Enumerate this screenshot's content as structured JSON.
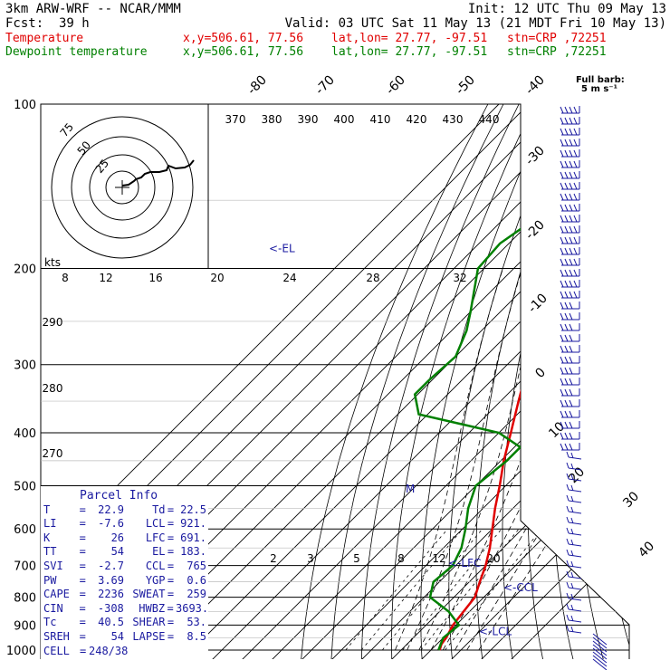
{
  "header": {
    "model": "3km ARW-WRF -- NCAR/MMM",
    "init": "Init: 12 UTC Thu 09 May 13",
    "fcst_label": "Fcst:",
    "fcst_value": "39 h",
    "valid": "Valid: 03 UTC Sat 11 May 13 (21 MDT Fri 10 May 13)",
    "temp_line": {
      "label": "Temperature",
      "xy": "x,y=506.61, 77.56",
      "latlon": "lat,lon= 27.77, -97.51",
      "stn": "stn=CRP ,72251",
      "color": "#e00000"
    },
    "dew_line": {
      "label": "Dewpoint temperature",
      "xy": "x,y=506.61, 77.56",
      "latlon": "lat,lon= 27.77, -97.51",
      "stn": "stn=CRP ,72251",
      "color": "#008000"
    }
  },
  "barb_legend": {
    "line1": "Full barb:",
    "line2": "5 m s⁻¹"
  },
  "hodograph": {
    "kts_label": "kts",
    "ring_labels": [
      "75",
      "50",
      "25"
    ],
    "speed_scale": [
      "8",
      "12",
      "16",
      "20",
      "24",
      "28",
      "32"
    ]
  },
  "chart_data": {
    "type": "line",
    "chart_kind": "skew-T log-p sounding",
    "title": "",
    "y_axis": "pressure (hPa)",
    "pressure_ticks": [
      100,
      200,
      300,
      400,
      500,
      600,
      700,
      800,
      900,
      1000
    ],
    "isotherm_labels": [
      "-80",
      "-70",
      "-60",
      "-50",
      "-40",
      "-30",
      "-20",
      "-10",
      "0",
      "10",
      "20",
      "30",
      "40"
    ],
    "theta_labels": [
      "370",
      "380",
      "390",
      "400",
      "410",
      "420",
      "430",
      "440"
    ],
    "theta_side_labels": [
      "290",
      "280",
      "270"
    ],
    "mixing_ratio_labels": [
      "2",
      "3",
      "5",
      "8",
      "12",
      "20"
    ],
    "levels": [
      {
        "text": "<-EL",
        "p": 183
      },
      {
        "text": "<-LFC",
        "p": 691
      },
      {
        "text": "<-CCL",
        "p": 765
      },
      {
        "text": "<-LCL",
        "p": 921
      },
      {
        "text": "M",
        "p": 505
      }
    ],
    "series": [
      {
        "name": "Temperature",
        "color": "#e00000",
        "points": [
          [
            100,
            -52
          ],
          [
            110,
            -55.5
          ],
          [
            125,
            -58.5
          ],
          [
            140,
            -61
          ],
          [
            155,
            -63
          ],
          [
            170,
            -64
          ],
          [
            185,
            -64.5
          ],
          [
            200,
            -61
          ],
          [
            250,
            -53
          ],
          [
            300,
            -43
          ],
          [
            350,
            -34
          ],
          [
            400,
            -26
          ],
          [
            450,
            -19
          ],
          [
            500,
            -12
          ],
          [
            550,
            -6
          ],
          [
            600,
            0
          ],
          [
            650,
            5.5
          ],
          [
            700,
            10
          ],
          [
            750,
            13.5
          ],
          [
            800,
            17
          ],
          [
            850,
            18
          ],
          [
            900,
            19
          ],
          [
            950,
            21
          ],
          [
            975,
            21.5
          ],
          [
            1000,
            22.9
          ]
        ]
      },
      {
        "name": "Dewpoint temperature",
        "color": "#008000",
        "points": [
          [
            100,
            -72
          ],
          [
            130,
            -80
          ],
          [
            160,
            -89
          ],
          [
            180,
            -93
          ],
          [
            200,
            -92
          ],
          [
            240,
            -80
          ],
          [
            260,
            -75
          ],
          [
            290,
            -70
          ],
          [
            320,
            -71
          ],
          [
            340,
            -71
          ],
          [
            370,
            -63
          ],
          [
            400,
            -30
          ],
          [
            425,
            -18
          ],
          [
            450,
            -18
          ],
          [
            500,
            -20
          ],
          [
            550,
            -15
          ],
          [
            600,
            -9
          ],
          [
            650,
            -4
          ],
          [
            700,
            -1
          ],
          [
            750,
            -2
          ],
          [
            800,
            2
          ],
          [
            850,
            13
          ],
          [
            900,
            21
          ],
          [
            950,
            20
          ],
          [
            1000,
            22.5
          ]
        ]
      }
    ]
  },
  "parcel": {
    "title": "Parcel Info",
    "rows": [
      {
        "k1": "T",
        "v1": "22.9",
        "k2": "Td",
        "v2": "22.5"
      },
      {
        "k1": "LI",
        "v1": "-7.6",
        "k2": "LCL",
        "v2": "921."
      },
      {
        "k1": "K",
        "v1": "26",
        "k2": "LFC",
        "v2": "691."
      },
      {
        "k1": "TT",
        "v1": "54",
        "k2": "EL",
        "v2": "183."
      },
      {
        "k1": "SVI",
        "v1": "-2.7",
        "k2": "CCL",
        "v2": "765"
      },
      {
        "k1": "PW",
        "v1": "3.69",
        "k2": "YGP",
        "v2": "0.6"
      },
      {
        "k1": "CAPE",
        "v1": "2236",
        "k2": "SWEAT",
        "v2": "259"
      },
      {
        "k1": "CIN",
        "v1": "-308",
        "k2": "HWBZ",
        "v2": "3693."
      },
      {
        "k1": "Tc",
        "v1": "40.5",
        "k2": "SHEAR",
        "v2": "53."
      },
      {
        "k1": "SREH",
        "v1": "54",
        "k2": "LAPSE",
        "v2": "8.5"
      }
    ],
    "cell_label": "CELL",
    "cell_value": "248/38",
    "color": "#1a1aa0"
  },
  "colors": {
    "axis": "#000000",
    "grid": "#000000",
    "blue": "#1a1aa0"
  }
}
